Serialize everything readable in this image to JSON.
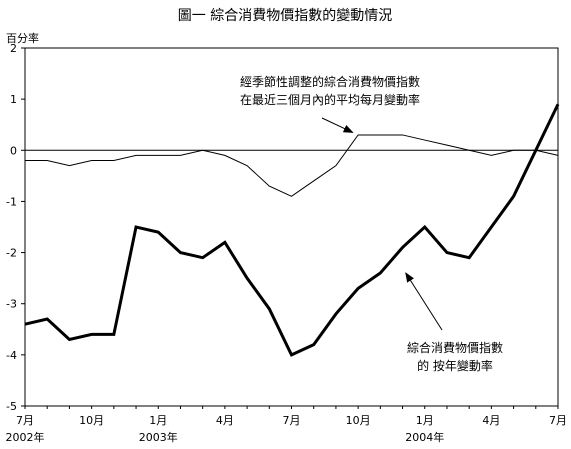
{
  "chart_data": {
    "type": "line",
    "title": "圖一  綜合消費物價指數的變動情況",
    "ylabel": "百分率",
    "ylim": [
      -5,
      2
    ],
    "yticks": [
      2,
      1,
      0,
      -1,
      -2,
      -3,
      -4,
      -5
    ],
    "grid": false,
    "x": [
      "2002-07",
      "2002-08",
      "2002-09",
      "2002-10",
      "2002-11",
      "2002-12",
      "2003-01",
      "2003-02",
      "2003-03",
      "2003-04",
      "2003-05",
      "2003-06",
      "2003-07",
      "2003-08",
      "2003-09",
      "2003-10",
      "2003-11",
      "2003-12",
      "2004-01",
      "2004-02",
      "2004-03",
      "2004-04",
      "2004-05",
      "2004-06",
      "2004-07"
    ],
    "x_tick_labels": [
      {
        "x": "2002-07",
        "label": "7月"
      },
      {
        "x": "2002-10",
        "label": "10月"
      },
      {
        "x": "2003-01",
        "label": "1月"
      },
      {
        "x": "2003-04",
        "label": "4月"
      },
      {
        "x": "2003-07",
        "label": "7月"
      },
      {
        "x": "2003-10",
        "label": "10月"
      },
      {
        "x": "2004-01",
        "label": "1月"
      },
      {
        "x": "2004-04",
        "label": "4月"
      },
      {
        "x": "2004-07",
        "label": "7月"
      }
    ],
    "year_labels": [
      {
        "x": "2002-07",
        "label": "2002年"
      },
      {
        "x": "2003-01",
        "label": "2003年"
      },
      {
        "x": "2004-01",
        "label": "2004年"
      }
    ],
    "series": [
      {
        "name": "綜合消費物價指數的按年變動率",
        "color": "#000000",
        "style": "thick",
        "values": [
          -3.4,
          -3.3,
          -3.7,
          -3.6,
          -3.6,
          -1.5,
          -1.6,
          -2.0,
          -2.1,
          -1.8,
          -2.5,
          -3.1,
          -4.0,
          -3.8,
          -3.2,
          -2.7,
          -2.4,
          -1.9,
          -1.5,
          -2.0,
          -2.1,
          -1.5,
          -0.9,
          0.0,
          0.9
        ]
      },
      {
        "name": "經季節性調整的綜合消費物價指數在最近三個月內的平均每月變動率",
        "color": "#000000",
        "style": "thin",
        "values": [
          -0.2,
          -0.2,
          -0.3,
          -0.2,
          -0.2,
          -0.1,
          -0.1,
          -0.1,
          0.0,
          -0.1,
          -0.3,
          -0.7,
          -0.9,
          -0.6,
          -0.3,
          0.3,
          0.3,
          0.3,
          0.2,
          0.1,
          0.0,
          -0.1,
          0.0,
          0.0,
          -0.1
        ]
      }
    ],
    "annotations": [
      {
        "series": 1,
        "lines": [
          "經季節性調整的綜合消費物價指數",
          "在最近三個月內的平均每月變動率"
        ],
        "arrow_to": {
          "x": "2003-10",
          "y": 0.3
        }
      },
      {
        "series": 0,
        "lines": [
          "綜合消費物價指數",
          "的 按年變動率"
        ],
        "arrow_to": {
          "x": "2003-12",
          "y": -2.3
        }
      }
    ]
  }
}
